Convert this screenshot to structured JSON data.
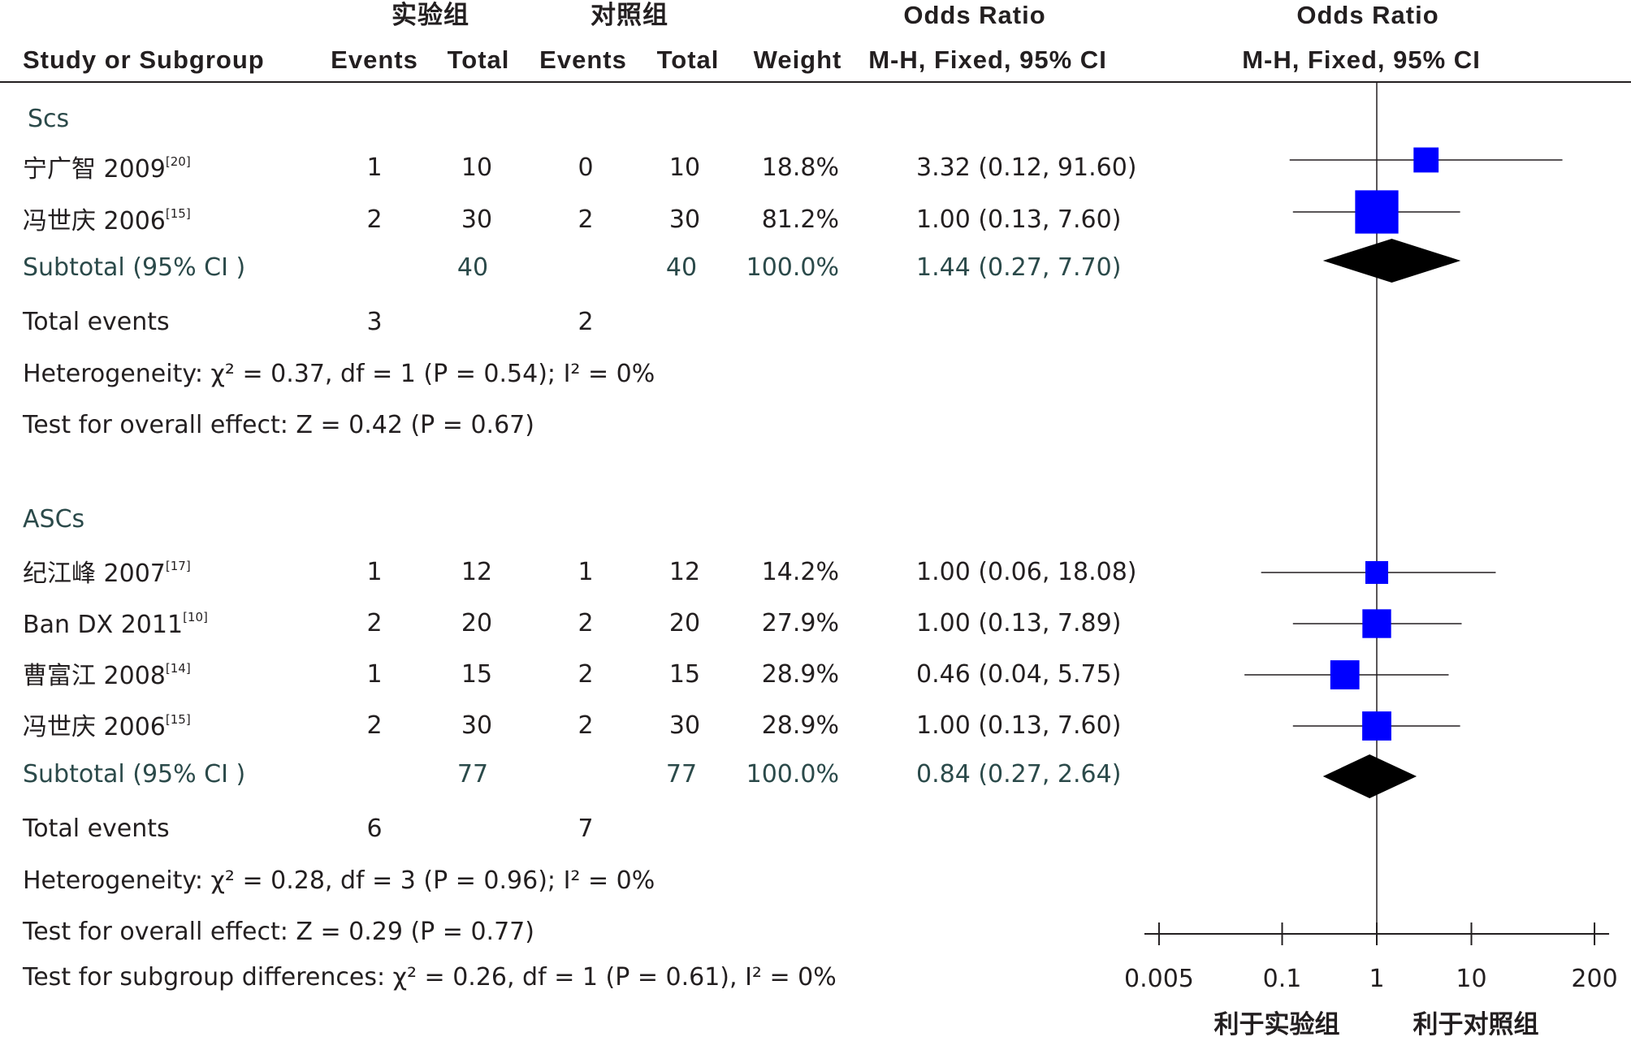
{
  "header": {
    "group_exp": "实验组",
    "group_ctrl": "对照组",
    "or_title": "Odds Ratio",
    "or_method": "M-H, Fixed, 95% CI",
    "plot_title": "Odds Ratio",
    "plot_method": "M-H, Fixed, 95% CI",
    "col_study": "Study or Subgroup",
    "col_events_exp": "Events",
    "col_total_exp": "Total",
    "col_events_ctrl": "Events",
    "col_total_ctrl": "Total",
    "col_weight": "Weight"
  },
  "subgroups": [
    {
      "name": "Scs",
      "studies": [
        {
          "name": "宁广智 2009",
          "ref": "[20]",
          "exp_events": "1",
          "exp_total": "10",
          "ctrl_events": "0",
          "ctrl_total": "10",
          "weight": "18.8%",
          "ci_text": "3.32 (0.12, 91.60)"
        },
        {
          "name": "冯世庆 2006",
          "ref": "[15]",
          "exp_events": "2",
          "exp_total": "30",
          "ctrl_events": "2",
          "ctrl_total": "30",
          "weight": "81.2%",
          "ci_text": "1.00 (0.13, 7.60)"
        }
      ],
      "subtotal": {
        "label": "Subtotal (95% CI )",
        "exp_total": "40",
        "ctrl_total": "40",
        "weight": "100.0%",
        "ci_text": "1.44 (0.27, 7.70)"
      },
      "total_events": {
        "label": "Total events",
        "exp": "3",
        "ctrl": "2"
      },
      "heterogeneity": "Heterogeneity: χ² = 0.37, df = 1 (P = 0.54); I² = 0%",
      "overall_effect": "Test for overall effect: Z = 0.42 (P = 0.67)"
    },
    {
      "name": "ASCs",
      "studies": [
        {
          "name": "纪江峰 2007",
          "ref": "[17]",
          "exp_events": "1",
          "exp_total": "12",
          "ctrl_events": "1",
          "ctrl_total": "12",
          "weight": "14.2%",
          "ci_text": "1.00 (0.06, 18.08)"
        },
        {
          "name": "Ban DX 2011",
          "ref": "[10]",
          "exp_events": "2",
          "exp_total": "20",
          "ctrl_events": "2",
          "ctrl_total": "20",
          "weight": "27.9%",
          "ci_text": "1.00 (0.13, 7.89)"
        },
        {
          "name": "曹富江 2008",
          "ref": "[14]",
          "exp_events": "1",
          "exp_total": "15",
          "ctrl_events": "2",
          "ctrl_total": "15",
          "weight": "28.9%",
          "ci_text": "0.46 (0.04, 5.75)"
        },
        {
          "name": "冯世庆 2006",
          "ref": "[15]",
          "exp_events": "2",
          "exp_total": "30",
          "ctrl_events": "2",
          "ctrl_total": "30",
          "weight": "28.9%",
          "ci_text": "1.00 (0.13, 7.60)"
        }
      ],
      "subtotal": {
        "label": "Subtotal (95% CI )",
        "exp_total": "77",
        "ctrl_total": "77",
        "weight": "100.0%",
        "ci_text": "0.84 (0.27, 2.64)"
      },
      "total_events": {
        "label": "Total events",
        "exp": "6",
        "ctrl": "7"
      },
      "heterogeneity": "Heterogeneity: χ² = 0.28, df = 3 (P = 0.96); I² = 0%",
      "overall_effect": "Test for overall effect: Z = 0.29 (P = 0.77)"
    }
  ],
  "subgroup_differences": "Test for subgroup differences: χ² = 0.26, df = 1 (P = 0.61), I² = 0%",
  "axis": {
    "ticks": [
      "0.005",
      "0.1",
      "1",
      "10",
      "200"
    ],
    "favours_left": "利于实验组",
    "favours_right": "利于对照组"
  },
  "colors": {
    "marker": "#0000ff",
    "summary": "#000000",
    "text": "#231f20",
    "subtotal_text": "#2b4a4a"
  },
  "chart_data": {
    "type": "forest",
    "scale": "log",
    "xlim": [
      0.005,
      200
    ],
    "null_line": 1,
    "ticks": [
      0.005,
      0.1,
      1,
      10,
      200
    ],
    "favours": [
      "利于实验组",
      "利于对照组"
    ],
    "studies": [
      {
        "subgroup": "Scs",
        "name": "宁广智 2009",
        "or": 3.32,
        "lo": 0.12,
        "hi": 91.6,
        "weight": 18.8
      },
      {
        "subgroup": "Scs",
        "name": "冯世庆 2006",
        "or": 1.0,
        "lo": 0.13,
        "hi": 7.6,
        "weight": 81.2
      },
      {
        "subgroup": "ASCs",
        "name": "纪江峰 2007",
        "or": 1.0,
        "lo": 0.06,
        "hi": 18.08,
        "weight": 14.2
      },
      {
        "subgroup": "ASCs",
        "name": "Ban DX 2011",
        "or": 1.0,
        "lo": 0.13,
        "hi": 7.89,
        "weight": 27.9
      },
      {
        "subgroup": "ASCs",
        "name": "曹富江 2008",
        "or": 0.46,
        "lo": 0.04,
        "hi": 5.75,
        "weight": 28.9
      },
      {
        "subgroup": "ASCs",
        "name": "冯世庆 2006",
        "or": 1.0,
        "lo": 0.13,
        "hi": 7.6,
        "weight": 28.9
      }
    ],
    "subtotals": [
      {
        "subgroup": "Scs",
        "or": 1.44,
        "lo": 0.27,
        "hi": 7.7
      },
      {
        "subgroup": "ASCs",
        "or": 0.84,
        "lo": 0.27,
        "hi": 2.64
      }
    ]
  }
}
